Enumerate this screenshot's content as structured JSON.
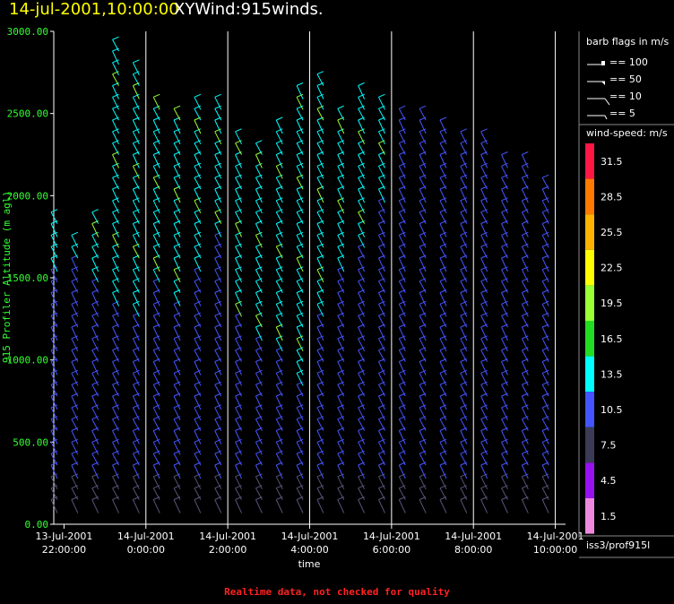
{
  "header": {
    "date_title": "14-jul-2001,10:00:00",
    "plot_title": "XYWind:915winds."
  },
  "footer": {
    "note": "Realtime data, not checked for quality"
  },
  "legend": {
    "barb_title": "barb flags in m/s",
    "barbs": [
      {
        "label": "== 100",
        "glyph": "barb-flag-100"
      },
      {
        "label": "== 50",
        "glyph": "barb-flag-50"
      },
      {
        "label": "== 10",
        "glyph": "barb-full-10"
      },
      {
        "label": "== 5",
        "glyph": "barb-half-5"
      }
    ],
    "colorbar_title": "wind-speed: m/s",
    "colorbar": [
      {
        "label": "31.5",
        "color": "#ff1744"
      },
      {
        "label": "28.5",
        "color": "#ff7a00"
      },
      {
        "label": "25.5",
        "color": "#ffb300"
      },
      {
        "label": "22.5",
        "color": "#ffff00"
      },
      {
        "label": "19.5",
        "color": "#9aff33"
      },
      {
        "label": "16.5",
        "color": "#22dd22"
      },
      {
        "label": "13.5",
        "color": "#00ffff"
      },
      {
        "label": "10.5",
        "color": "#4455ff"
      },
      {
        "label": "7.5",
        "color": "#3b3b55"
      },
      {
        "label": "4.5",
        "color": "#9911ee"
      },
      {
        "label": "1.5",
        "color": "#ee88dd"
      }
    ],
    "platform": "iss3/prof915l"
  },
  "chart_data": {
    "type": "wind-barb",
    "title": "XYWind:915winds.",
    "xlabel": "time",
    "ylabel": "915 Profiler Altitude (m agl)",
    "ylim": [
      0,
      3000
    ],
    "yticks": [
      "0.00",
      "500.00",
      "1000.00",
      "1500.00",
      "2000.00",
      "2500.00",
      "3000.00"
    ],
    "xlim": [
      "2001-07-13 21:45",
      "2001-07-14 10:15"
    ],
    "xticks": [
      {
        "date": "13-Jul-2001",
        "time": "22:00:00"
      },
      {
        "date": "14-Jul-2001",
        "time": "0:00:00"
      },
      {
        "date": "14-Jul-2001",
        "time": "2:00:00"
      },
      {
        "date": "14-Jul-2001",
        "time": "4:00:00"
      },
      {
        "date": "14-Jul-2001",
        "time": "6:00:00"
      },
      {
        "date": "14-Jul-2001",
        "time": "8:00:00"
      },
      {
        "date": "14-Jul-2001",
        "time": "10:00:00"
      }
    ],
    "grid": "vertical lines at each 2-hour tick",
    "profiles": [
      {
        "time": "21:45",
        "top": 1900,
        "cyan_above": 1600
      },
      {
        "time": "22:15",
        "top": 1800,
        "cyan_above": 1650
      },
      {
        "time": "22:45",
        "top": 1900,
        "cyan_above": 1500
      },
      {
        "time": "23:15",
        "top": 2950,
        "cyan_above": 1400
      },
      {
        "time": "23:45",
        "top": 2850,
        "cyan_above": 1300
      },
      {
        "time": "00:15",
        "top": 2650,
        "cyan_above": 1500
      },
      {
        "time": "00:45",
        "top": 2550,
        "cyan_above": 1400
      },
      {
        "time": "01:15",
        "top": 2600,
        "cyan_above": 1600
      },
      {
        "time": "01:45",
        "top": 2650,
        "cyan_above": 1800
      },
      {
        "time": "02:15",
        "top": 2400,
        "cyan_above": 1300
      },
      {
        "time": "02:45",
        "top": 2350,
        "cyan_above": 1200
      },
      {
        "time": "03:15",
        "top": 2500,
        "cyan_above": 1100
      },
      {
        "time": "03:45",
        "top": 2700,
        "cyan_above": 900
      },
      {
        "time": "04:15",
        "top": 2750,
        "cyan_above": 1300
      },
      {
        "time": "04:45",
        "top": 2550,
        "cyan_above": 1600
      },
      {
        "time": "05:15",
        "top": 2700,
        "cyan_above": 1700
      },
      {
        "time": "05:45",
        "top": 2650,
        "cyan_above": 2000
      },
      {
        "time": "06:15",
        "top": 2550,
        "cyan_above": 3000
      },
      {
        "time": "06:45",
        "top": 2550,
        "cyan_above": 3000
      },
      {
        "time": "07:15",
        "top": 2500,
        "cyan_above": 3000
      },
      {
        "time": "07:45",
        "top": 2450,
        "cyan_above": 3000
      },
      {
        "time": "08:15",
        "top": 2400,
        "cyan_above": 3000
      },
      {
        "time": "08:45",
        "top": 2300,
        "cyan_above": 3000
      },
      {
        "time": "09:15",
        "top": 2250,
        "cyan_above": 3000
      },
      {
        "time": "09:45",
        "top": 2150,
        "cyan_above": 3000
      }
    ]
  }
}
